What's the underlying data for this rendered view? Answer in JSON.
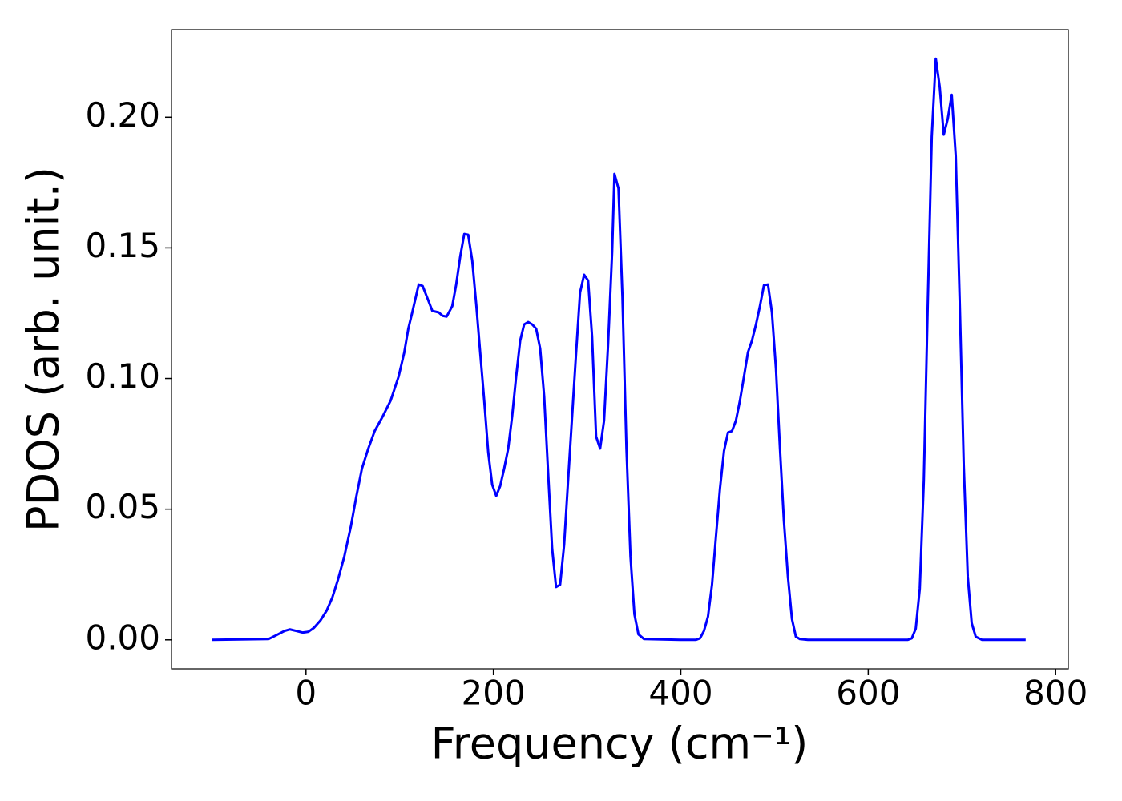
{
  "chart_data": {
    "type": "line",
    "xlabel": "Frequency (cm⁻¹)",
    "ylabel": "PDOS (arb. unit.)",
    "xlim": [
      -143.5,
      813.5
    ],
    "ylim": [
      -0.0111,
      0.2335
    ],
    "xticks": [
      0,
      200,
      400,
      600,
      800
    ],
    "yticks": [
      {
        "value": 0,
        "label": "0.00"
      },
      {
        "value": 0.05,
        "label": "0.05"
      },
      {
        "value": 0.1,
        "label": "0.10"
      },
      {
        "value": 0.15,
        "label": "0.15"
      },
      {
        "value": 0.2,
        "label": "0.20"
      }
    ],
    "series": [
      {
        "color": "#0000ff",
        "x": [
          -100,
          -40,
          -31.6,
          -23.0,
          -17.1,
          -10.2,
          -3.4,
          2.6,
          8.5,
          15.4,
          22.2,
          28.1,
          34.1,
          40.9,
          47.8,
          53.7,
          59.7,
          66.5,
          73.3,
          81.9,
          90.4,
          98.9,
          104.9,
          109.2,
          113.4,
          120.3,
          124.5,
          130.5,
          134.8,
          141.6,
          145.8,
          150.1,
          156.1,
          160.3,
          164.6,
          168.9,
          173.1,
          177.4,
          181.7,
          185.9,
          190.2,
          194.5,
          198.7,
          203.0,
          207.2,
          211.5,
          215.8,
          220.0,
          224.3,
          228.6,
          232.8,
          237.1,
          241.4,
          245.6,
          249.9,
          254.2,
          258.4,
          262.7,
          266.9,
          271.2,
          275.5,
          279.7,
          284.0,
          288.3,
          292.5,
          296.8,
          301.1,
          305.3,
          309.6,
          313.9,
          318.1,
          322.4,
          326.7,
          329.2,
          333.5,
          337.7,
          342.0,
          346.3,
          350.5,
          354.8,
          360.8,
          399.1,
          416.2,
          420.5,
          424.7,
          429.0,
          433.3,
          437.5,
          441.8,
          446.1,
          450.3,
          454.6,
          458.8,
          463.1,
          467.4,
          471.6,
          475.9,
          480.2,
          484.4,
          488.7,
          493.0,
          497.2,
          501.5,
          505.8,
          510.0,
          514.3,
          518.6,
          522.8,
          527.1,
          535.6,
          642.2,
          646.5,
          650.7,
          655.0,
          659.3,
          663.5,
          667.8,
          672.1,
          676.3,
          680.6,
          684.9,
          689.1,
          693.4,
          697.7,
          701.9,
          706.2,
          710.4,
          714.7,
          721.5,
          768
        ],
        "values": [
          0,
          0.0003,
          0.0018,
          0.0034,
          0.004,
          0.0034,
          0.0028,
          0.0031,
          0.0046,
          0.0074,
          0.0113,
          0.0162,
          0.023,
          0.0319,
          0.0432,
          0.0548,
          0.0655,
          0.0732,
          0.0799,
          0.0855,
          0.0916,
          0.1008,
          0.11,
          0.1191,
          0.1253,
          0.136,
          0.1354,
          0.1299,
          0.1259,
          0.1253,
          0.124,
          0.1237,
          0.1277,
          0.136,
          0.1467,
          0.1553,
          0.155,
          0.1452,
          0.1283,
          0.11,
          0.0916,
          0.0717,
          0.0594,
          0.0551,
          0.0588,
          0.0655,
          0.0732,
          0.0855,
          0.1008,
          0.1145,
          0.1207,
          0.1216,
          0.1207,
          0.1191,
          0.1115,
          0.0931,
          0.064,
          0.0349,
          0.0202,
          0.0211,
          0.0364,
          0.0609,
          0.0855,
          0.11,
          0.1329,
          0.1397,
          0.1375,
          0.1161,
          0.0778,
          0.0732,
          0.0839,
          0.113,
          0.1482,
          0.1783,
          0.1727,
          0.1314,
          0.0732,
          0.0319,
          0.0098,
          0.0021,
          0.0003,
          0,
          0,
          0.0006,
          0.0034,
          0.0089,
          0.0211,
          0.0395,
          0.0579,
          0.0723,
          0.0793,
          0.0799,
          0.0839,
          0.0916,
          0.1008,
          0.11,
          0.1145,
          0.1207,
          0.1277,
          0.1357,
          0.136,
          0.1253,
          0.1038,
          0.0732,
          0.0456,
          0.0242,
          0.008,
          0.0012,
          0.0003,
          0,
          0,
          0.0006,
          0.0043,
          0.0196,
          0.0609,
          0.1283,
          0.1926,
          0.2224,
          0.2116,
          0.1933,
          0.1994,
          0.2086,
          0.185,
          0.1283,
          0.0671,
          0.0242,
          0.0064,
          0.0012,
          0,
          0
        ]
      }
    ]
  }
}
